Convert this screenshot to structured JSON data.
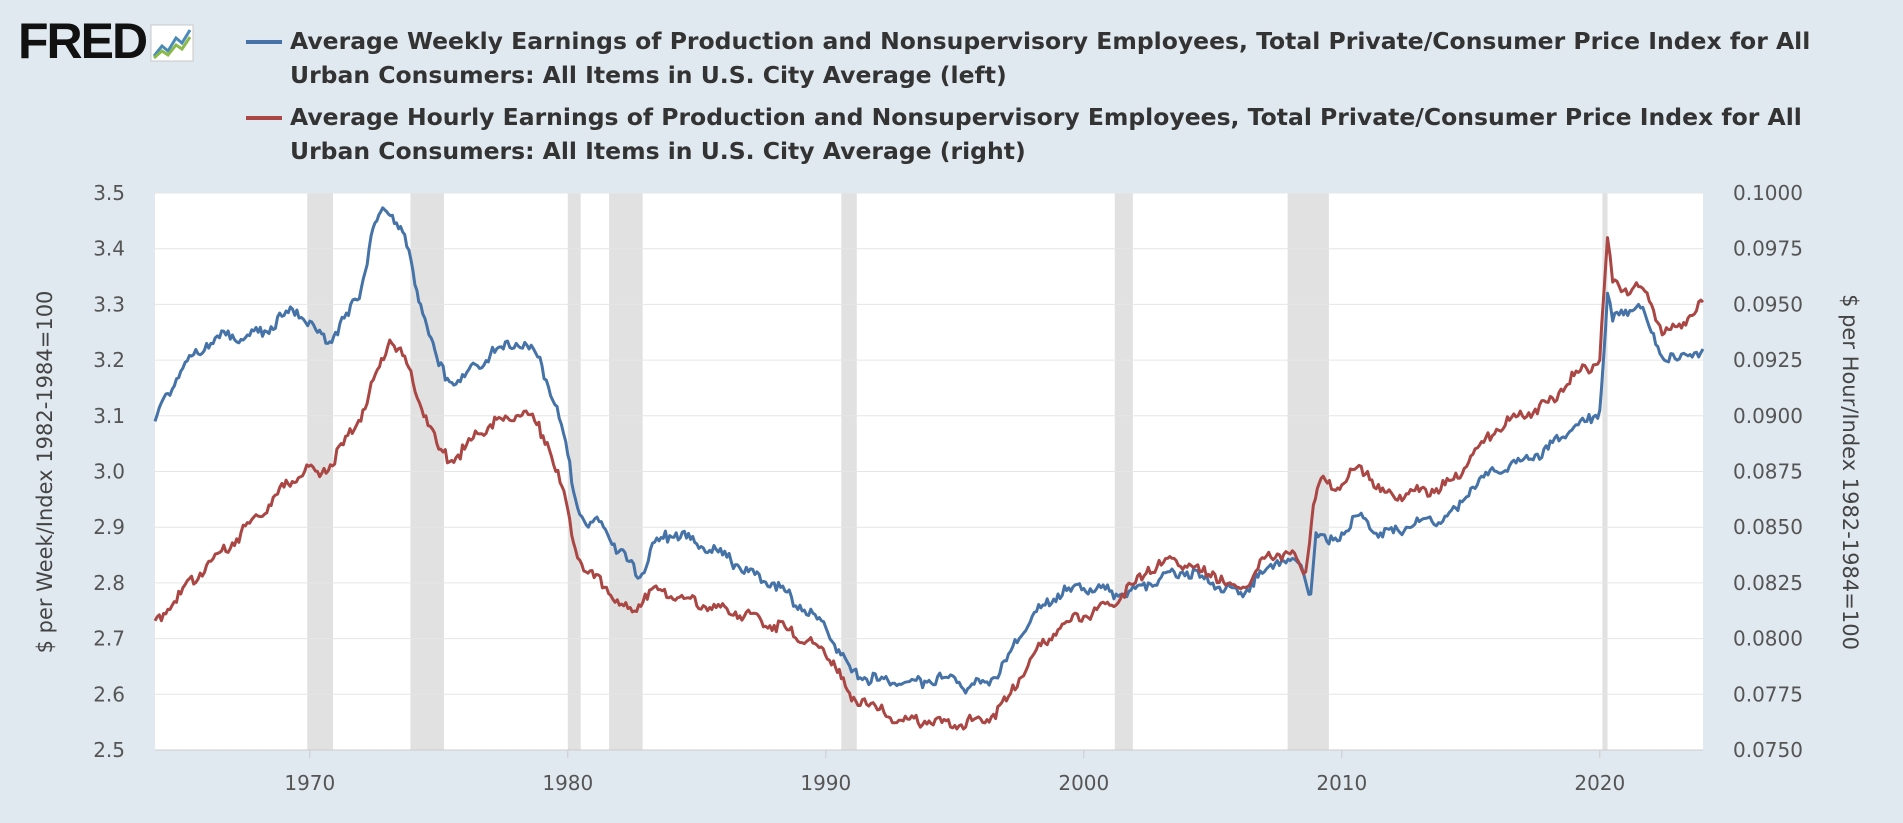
{
  "logo": {
    "text": "FRED",
    "icon": "fred-logo-chart-icon"
  },
  "colors": {
    "background": "#e1e9f0",
    "plot": "#ffffff",
    "grid": "#e6e6e6",
    "recession": "#e1e1e1",
    "series_left": "#4572a7",
    "series_right": "#aa4643"
  },
  "chart_data": {
    "type": "line",
    "legend_position": "top",
    "grid": true,
    "xlabel": "",
    "ylabel_left": "$ per Week/Index 1982-1984=100",
    "ylabel_right": "$ per Hour/Index 1982-1984=100",
    "x_ticks": [
      "1970",
      "1980",
      "1990",
      "2000",
      "2010",
      "2020"
    ],
    "xlim": [
      1964.0,
      2024.0
    ],
    "ylim_left": [
      2.5,
      3.5
    ],
    "ylim_right": [
      0.075,
      0.1
    ],
    "y_ticks_left": [
      "3.5",
      "3.4",
      "3.3",
      "3.2",
      "3.1",
      "3.0",
      "2.9",
      "2.8",
      "2.7",
      "2.6",
      "2.5"
    ],
    "y_ticks_right": [
      "0.1000",
      "0.0975",
      "0.0950",
      "0.0925",
      "0.0900",
      "0.0875",
      "0.0850",
      "0.0825",
      "0.0800",
      "0.0775",
      "0.0750"
    ],
    "recessions": [
      [
        1969.9,
        1970.9
      ],
      [
        1973.9,
        1975.2
      ],
      [
        1980.0,
        1980.5
      ],
      [
        1981.6,
        1982.9
      ],
      [
        1990.6,
        1991.2
      ],
      [
        2001.2,
        2001.9
      ],
      [
        2007.9,
        2009.5
      ],
      [
        2020.1,
        2020.3
      ]
    ],
    "series": [
      {
        "name": "Average Weekly Earnings of Production and Nonsupervisory Employees, Total Private/Consumer Price Index for All Urban Consumers: All Items in U.S. City Average (left)",
        "axis": "left",
        "color": "#4572a7",
        "points": [
          [
            1964.0,
            3.09
          ],
          [
            1964.5,
            3.14
          ],
          [
            1965.0,
            3.18
          ],
          [
            1965.5,
            3.21
          ],
          [
            1966.0,
            3.23
          ],
          [
            1966.5,
            3.24
          ],
          [
            1967.0,
            3.245
          ],
          [
            1967.5,
            3.24
          ],
          [
            1968.0,
            3.25
          ],
          [
            1968.5,
            3.26
          ],
          [
            1969.0,
            3.28
          ],
          [
            1969.5,
            3.29
          ],
          [
            1970.0,
            3.27
          ],
          [
            1970.3,
            3.25
          ],
          [
            1970.7,
            3.23
          ],
          [
            1971.0,
            3.25
          ],
          [
            1971.5,
            3.28
          ],
          [
            1972.0,
            3.33
          ],
          [
            1972.3,
            3.4
          ],
          [
            1972.6,
            3.45
          ],
          [
            1972.9,
            3.47
          ],
          [
            1973.2,
            3.46
          ],
          [
            1973.6,
            3.43
          ],
          [
            1974.0,
            3.36
          ],
          [
            1974.3,
            3.3
          ],
          [
            1974.7,
            3.24
          ],
          [
            1975.0,
            3.19
          ],
          [
            1975.5,
            3.16
          ],
          [
            1976.0,
            3.17
          ],
          [
            1976.5,
            3.19
          ],
          [
            1977.0,
            3.21
          ],
          [
            1977.5,
            3.22
          ],
          [
            1978.0,
            3.23
          ],
          [
            1978.5,
            3.22
          ],
          [
            1979.0,
            3.19
          ],
          [
            1979.5,
            3.12
          ],
          [
            1980.0,
            3.03
          ],
          [
            1980.3,
            2.95
          ],
          [
            1980.8,
            2.9
          ],
          [
            1981.3,
            2.91
          ],
          [
            1981.8,
            2.87
          ],
          [
            1982.3,
            2.84
          ],
          [
            1982.8,
            2.81
          ],
          [
            1983.2,
            2.86
          ],
          [
            1983.7,
            2.88
          ],
          [
            1984.2,
            2.89
          ],
          [
            1985.0,
            2.87
          ],
          [
            1986.0,
            2.85
          ],
          [
            1987.0,
            2.82
          ],
          [
            1988.0,
            2.8
          ],
          [
            1989.0,
            2.76
          ],
          [
            1990.0,
            2.72
          ],
          [
            1990.5,
            2.68
          ],
          [
            1991.0,
            2.64
          ],
          [
            1991.5,
            2.63
          ],
          [
            1992.0,
            2.625
          ],
          [
            1993.0,
            2.62
          ],
          [
            1994.0,
            2.625
          ],
          [
            1995.0,
            2.63
          ],
          [
            1995.5,
            2.61
          ],
          [
            1996.0,
            2.62
          ],
          [
            1996.5,
            2.63
          ],
          [
            1997.0,
            2.66
          ],
          [
            1997.5,
            2.7
          ],
          [
            1998.0,
            2.74
          ],
          [
            1998.5,
            2.76
          ],
          [
            1999.0,
            2.78
          ],
          [
            1999.5,
            2.785
          ],
          [
            2000.0,
            2.79
          ],
          [
            2000.5,
            2.79
          ],
          [
            2001.0,
            2.785
          ],
          [
            2001.5,
            2.78
          ],
          [
            2002.0,
            2.79
          ],
          [
            2002.5,
            2.8
          ],
          [
            2003.0,
            2.81
          ],
          [
            2003.5,
            2.82
          ],
          [
            2004.0,
            2.82
          ],
          [
            2004.5,
            2.81
          ],
          [
            2005.0,
            2.8
          ],
          [
            2005.5,
            2.79
          ],
          [
            2006.0,
            2.78
          ],
          [
            2006.5,
            2.8
          ],
          [
            2007.0,
            2.82
          ],
          [
            2007.5,
            2.84
          ],
          [
            2008.0,
            2.84
          ],
          [
            2008.5,
            2.82
          ],
          [
            2008.8,
            2.78
          ],
          [
            2009.0,
            2.89
          ],
          [
            2009.5,
            2.87
          ],
          [
            2010.0,
            2.89
          ],
          [
            2010.5,
            2.92
          ],
          [
            2011.0,
            2.91
          ],
          [
            2011.5,
            2.89
          ],
          [
            2012.0,
            2.89
          ],
          [
            2012.5,
            2.9
          ],
          [
            2013.0,
            2.91
          ],
          [
            2013.5,
            2.91
          ],
          [
            2014.0,
            2.92
          ],
          [
            2014.5,
            2.93
          ],
          [
            2015.0,
            2.97
          ],
          [
            2015.5,
            2.99
          ],
          [
            2016.0,
            3.0
          ],
          [
            2016.5,
            3.01
          ],
          [
            2017.0,
            3.02
          ],
          [
            2017.5,
            3.03
          ],
          [
            2018.0,
            3.04
          ],
          [
            2018.5,
            3.06
          ],
          [
            2019.0,
            3.08
          ],
          [
            2019.5,
            3.09
          ],
          [
            2020.0,
            3.11
          ],
          [
            2020.3,
            3.32
          ],
          [
            2020.5,
            3.27
          ],
          [
            2021.0,
            3.29
          ],
          [
            2021.5,
            3.3
          ],
          [
            2022.0,
            3.25
          ],
          [
            2022.5,
            3.2
          ],
          [
            2023.0,
            3.2
          ],
          [
            2023.5,
            3.21
          ],
          [
            2024.0,
            3.22
          ]
        ]
      },
      {
        "name": "Average Hourly Earnings of Production and Nonsupervisory Employees, Total Private/Consumer Price Index for All Urban Consumers: All Items in U.S. City Average (right)",
        "axis": "right",
        "color": "#aa4643",
        "points": [
          [
            1964.0,
            0.0808
          ],
          [
            1965.0,
            0.082
          ],
          [
            1966.0,
            0.0833
          ],
          [
            1967.0,
            0.0843
          ],
          [
            1968.0,
            0.0855
          ],
          [
            1969.0,
            0.0868
          ],
          [
            1969.8,
            0.0875
          ],
          [
            1970.3,
            0.0875
          ],
          [
            1970.8,
            0.0878
          ],
          [
            1971.3,
            0.0887
          ],
          [
            1971.9,
            0.0898
          ],
          [
            1972.3,
            0.091
          ],
          [
            1972.7,
            0.0922
          ],
          [
            1973.1,
            0.0934
          ],
          [
            1973.6,
            0.0927
          ],
          [
            1974.0,
            0.0915
          ],
          [
            1974.5,
            0.09
          ],
          [
            1975.0,
            0.0885
          ],
          [
            1975.5,
            0.088
          ],
          [
            1976.0,
            0.0885
          ],
          [
            1976.5,
            0.0892
          ],
          [
            1977.0,
            0.0896
          ],
          [
            1977.5,
            0.0898
          ],
          [
            1978.0,
            0.09
          ],
          [
            1978.3,
            0.0902
          ],
          [
            1978.8,
            0.0896
          ],
          [
            1979.2,
            0.0888
          ],
          [
            1979.7,
            0.087
          ],
          [
            1980.0,
            0.0858
          ],
          [
            1980.3,
            0.084
          ],
          [
            1980.7,
            0.083
          ],
          [
            1981.5,
            0.0823
          ],
          [
            1982.0,
            0.0815
          ],
          [
            1982.5,
            0.0812
          ],
          [
            1983.0,
            0.082
          ],
          [
            1983.5,
            0.0822
          ],
          [
            1984.5,
            0.0818
          ],
          [
            1985.5,
            0.0814
          ],
          [
            1986.5,
            0.0812
          ],
          [
            1987.5,
            0.0808
          ],
          [
            1988.5,
            0.0804
          ],
          [
            1989.5,
            0.0798
          ],
          [
            1990.3,
            0.079
          ],
          [
            1990.6,
            0.0782
          ],
          [
            1991.0,
            0.0772
          ],
          [
            1991.5,
            0.0773
          ],
          [
            1992.0,
            0.0768
          ],
          [
            1993.0,
            0.0763
          ],
          [
            1994.0,
            0.0763
          ],
          [
            1995.0,
            0.0761
          ],
          [
            1996.0,
            0.0764
          ],
          [
            1996.5,
            0.0766
          ],
          [
            1997.0,
            0.0772
          ],
          [
            1997.5,
            0.0782
          ],
          [
            1998.0,
            0.0792
          ],
          [
            1998.5,
            0.0798
          ],
          [
            1999.0,
            0.0804
          ],
          [
            1999.5,
            0.0808
          ],
          [
            2000.0,
            0.081
          ],
          [
            2000.5,
            0.0813
          ],
          [
            2001.0,
            0.0815
          ],
          [
            2001.5,
            0.082
          ],
          [
            2002.0,
            0.0825
          ],
          [
            2002.5,
            0.0832
          ],
          [
            2003.0,
            0.0833
          ],
          [
            2003.5,
            0.0836
          ],
          [
            2004.0,
            0.0832
          ],
          [
            2004.5,
            0.083
          ],
          [
            2005.0,
            0.083
          ],
          [
            2005.5,
            0.0824
          ],
          [
            2006.0,
            0.0823
          ],
          [
            2006.5,
            0.0826
          ],
          [
            2007.0,
            0.0836
          ],
          [
            2007.5,
            0.0838
          ],
          [
            2008.0,
            0.0838
          ],
          [
            2008.6,
            0.083
          ],
          [
            2008.9,
            0.086
          ],
          [
            2009.2,
            0.0872
          ],
          [
            2009.6,
            0.0867
          ],
          [
            2010.0,
            0.0869
          ],
          [
            2010.5,
            0.0876
          ],
          [
            2011.0,
            0.0875
          ],
          [
            2011.5,
            0.0866
          ],
          [
            2012.0,
            0.0864
          ],
          [
            2012.5,
            0.0865
          ],
          [
            2013.0,
            0.0866
          ],
          [
            2013.5,
            0.0867
          ],
          [
            2014.0,
            0.0869
          ],
          [
            2014.5,
            0.0872
          ],
          [
            2015.0,
            0.0882
          ],
          [
            2015.5,
            0.0888
          ],
          [
            2016.0,
            0.0894
          ],
          [
            2016.5,
            0.0898
          ],
          [
            2017.0,
            0.09
          ],
          [
            2017.5,
            0.0903
          ],
          [
            2018.0,
            0.0906
          ],
          [
            2018.5,
            0.0912
          ],
          [
            2019.0,
            0.0918
          ],
          [
            2019.5,
            0.0921
          ],
          [
            2020.0,
            0.0925
          ],
          [
            2020.3,
            0.098
          ],
          [
            2020.5,
            0.096
          ],
          [
            2021.0,
            0.0957
          ],
          [
            2021.5,
            0.0958
          ],
          [
            2022.0,
            0.095
          ],
          [
            2022.5,
            0.0937
          ],
          [
            2023.0,
            0.094
          ],
          [
            2023.5,
            0.0945
          ],
          [
            2024.0,
            0.0951
          ]
        ]
      }
    ]
  }
}
